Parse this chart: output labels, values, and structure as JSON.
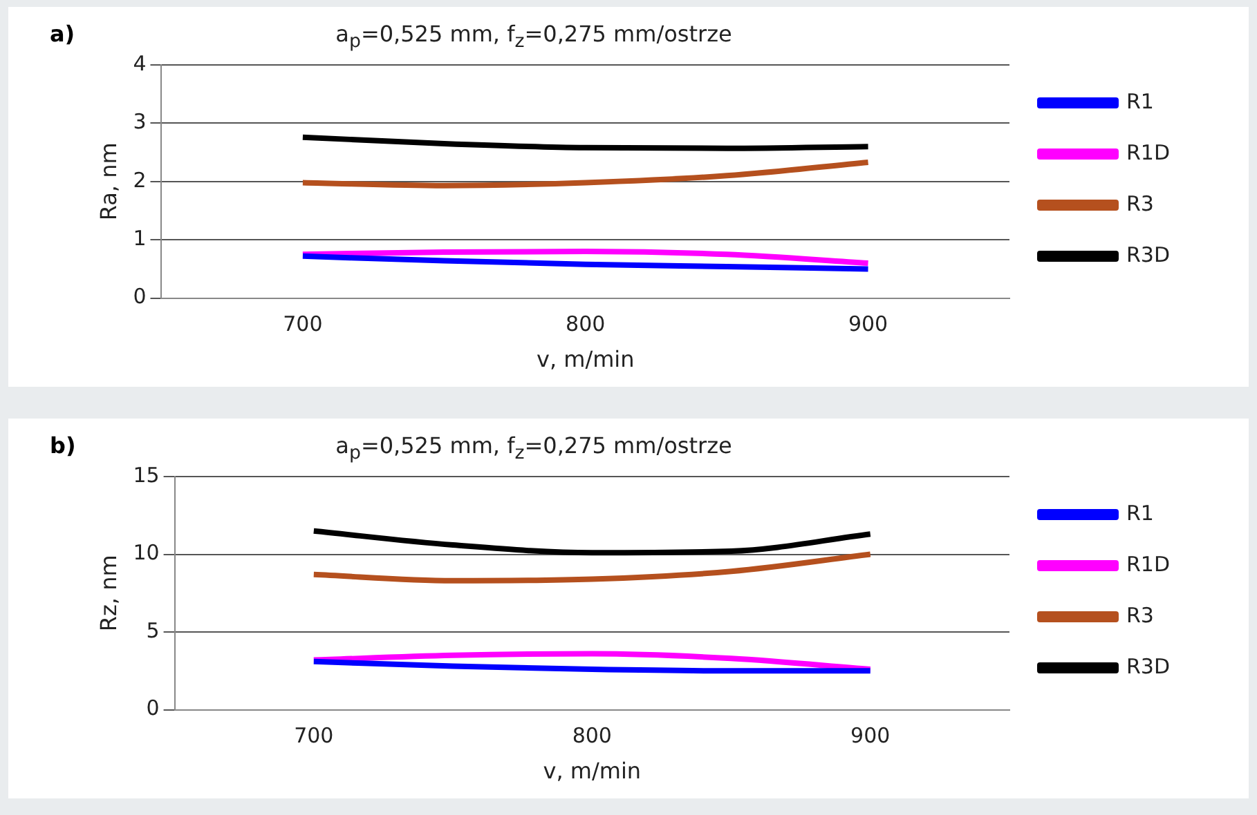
{
  "chart_data": [
    {
      "type": "line",
      "title": "a$_{p}$=0,525 mm, f$_{z}$=0,275 mm/ostrze",
      "xlabel": "v, m/min",
      "ylabel": "Ra, nm",
      "annotations": [
        "a)"
      ],
      "x": [
        700,
        750,
        800,
        850,
        900
      ],
      "xlim": [
        650,
        950
      ],
      "xticks": [
        700,
        800,
        900
      ],
      "ylim": [
        0,
        4
      ],
      "yticks": [
        0,
        1,
        2,
        3,
        4
      ],
      "grid": "y",
      "legend": "right",
      "marker": "none",
      "line_style": "solid",
      "series": [
        {
          "name": "R1",
          "color": "#0000ff",
          "values": [
            0.72,
            0.64,
            0.58,
            0.54,
            0.5
          ]
        },
        {
          "name": "R1D",
          "color": "#ff00ff",
          "values": [
            0.75,
            0.79,
            0.8,
            0.75,
            0.6
          ]
        },
        {
          "name": "R3",
          "color": "#b5501e",
          "values": [
            1.98,
            1.93,
            1.98,
            2.1,
            2.33
          ]
        },
        {
          "name": "R3D",
          "color": "#000000",
          "values": [
            2.76,
            2.65,
            2.58,
            2.57,
            2.6
          ]
        }
      ]
    },
    {
      "type": "line",
      "title": "a$_{p}$=0,525 mm, f$_{z}$=0,275 mm/ostrze",
      "xlabel": "v, m/min",
      "ylabel": "Rz, nm",
      "annotations": [
        "b)"
      ],
      "x": [
        700,
        750,
        800,
        850,
        900
      ],
      "xlim": [
        650,
        950
      ],
      "xticks": [
        700,
        800,
        900
      ],
      "ylim": [
        0,
        15
      ],
      "yticks": [
        0,
        5,
        10,
        15
      ],
      "grid": "y",
      "legend": "right",
      "marker": "none",
      "line_style": "solid",
      "series": [
        {
          "name": "R1",
          "color": "#0000ff",
          "values": [
            3.1,
            2.8,
            2.6,
            2.5,
            2.5
          ]
        },
        {
          "name": "R1D",
          "color": "#ff00ff",
          "values": [
            3.2,
            3.5,
            3.6,
            3.3,
            2.6
          ]
        },
        {
          "name": "R3",
          "color": "#b5501e",
          "values": [
            8.7,
            8.3,
            8.4,
            8.9,
            10.0
          ]
        },
        {
          "name": "R3D",
          "color": "#000000",
          "values": [
            11.5,
            10.6,
            10.1,
            10.2,
            11.3
          ]
        }
      ]
    }
  ]
}
